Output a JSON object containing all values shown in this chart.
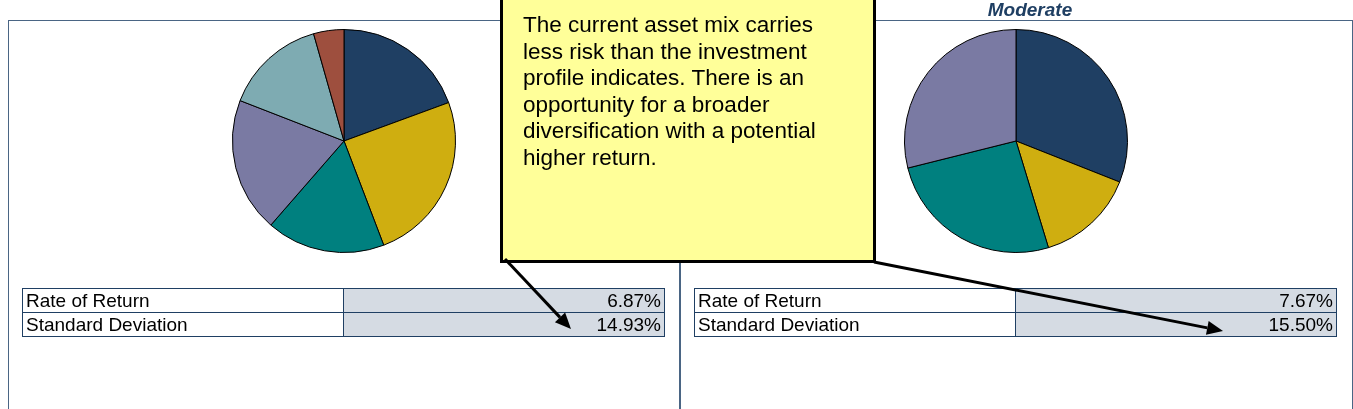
{
  "chart_data": [
    {
      "type": "pie",
      "categories": [
        null,
        null,
        null,
        null,
        null,
        null
      ],
      "values": [
        19.4,
        24.8,
        17.2,
        19.5,
        14.7,
        4.4
      ],
      "colors": [
        "#1f3f63",
        "#cfae10",
        "#00807f",
        "#7a7aa3",
        "#7eabb2",
        "#9e4f3e"
      ],
      "annotations": [
        "The current asset mix carries less risk than the investment profile indicates. There is an opportunity for a broader diversification with a potential higher return.",
        "Rate of Return",
        "6.87%",
        "Standard Deviation",
        "14.93%"
      ]
    },
    {
      "type": "pie",
      "title": "Moderate",
      "categories": [
        null,
        null,
        null,
        null
      ],
      "values": [
        31.0,
        14.3,
        25.8,
        28.9
      ],
      "colors": [
        "#1f3f63",
        "#cfae10",
        "#00807f",
        "#7a7aa3"
      ],
      "annotations": [
        "Rate of Return",
        "7.67%",
        "Standard Deviation",
        "15.50%"
      ]
    }
  ]
}
